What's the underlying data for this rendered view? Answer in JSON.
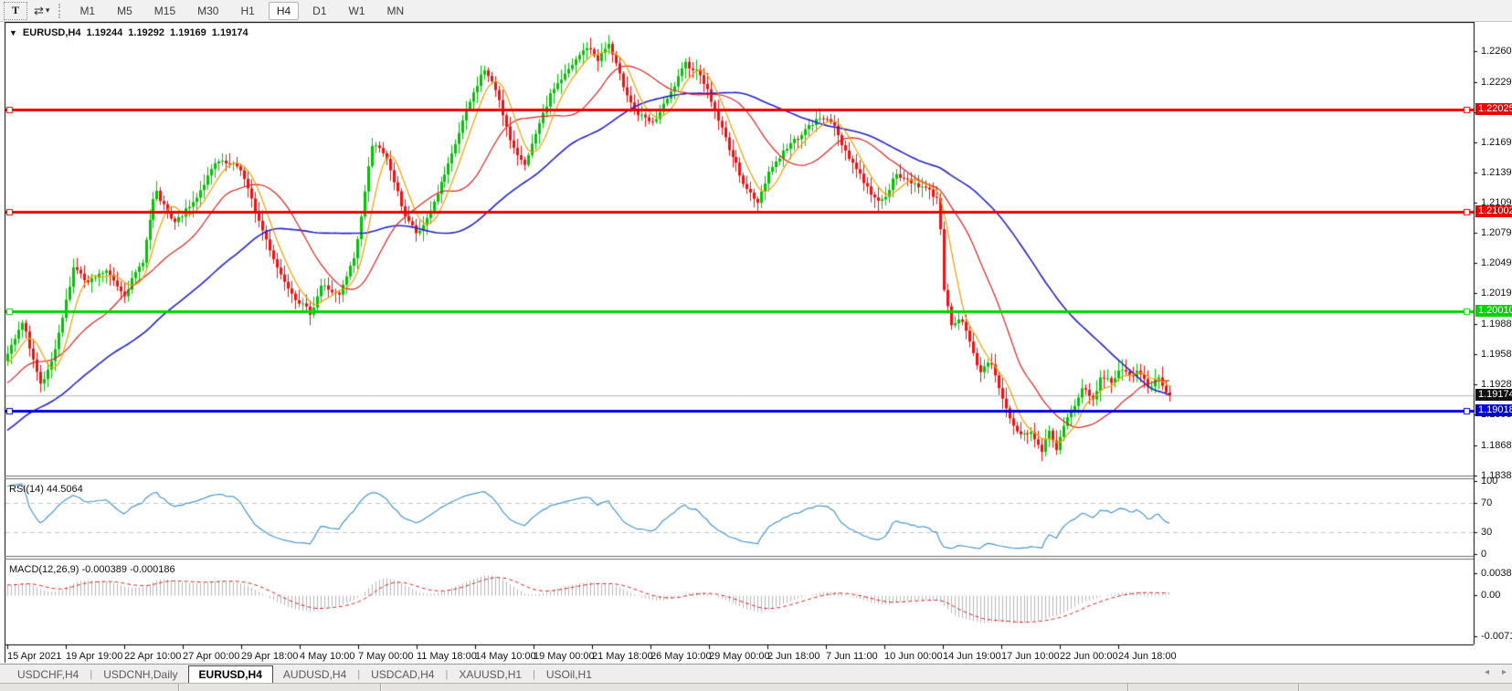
{
  "toolbar": {
    "text_tool_label": "T",
    "tools_dropdown_icon": "⇄",
    "dropdown_caret": "▾",
    "timeframes": [
      "M1",
      "M5",
      "M15",
      "M30",
      "H1",
      "H4",
      "D1",
      "W1",
      "MN"
    ],
    "active_timeframe": "H4"
  },
  "chart": {
    "dropdown_icon": "▼",
    "title": "EURUSD,H4",
    "ohlc": {
      "open": "1.19244",
      "high": "1.19292",
      "low": "1.19169",
      "close": "1.19174"
    }
  },
  "chart_data": {
    "type": "candlestick",
    "symbol": "EURUSD",
    "timeframe": "H4",
    "up_color": "#00c400",
    "down_color": "#ee1111",
    "bars": 320,
    "close_path": [
      [
        0.0,
        1.1958
      ],
      [
        0.013,
        1.199
      ],
      [
        0.029,
        1.1924
      ],
      [
        0.041,
        1.1962
      ],
      [
        0.057,
        1.2048
      ],
      [
        0.068,
        1.2028
      ],
      [
        0.084,
        1.2042
      ],
      [
        0.1,
        1.2018
      ],
      [
        0.116,
        1.2052
      ],
      [
        0.127,
        1.2122
      ],
      [
        0.143,
        1.2088
      ],
      [
        0.159,
        1.2108
      ],
      [
        0.18,
        1.215
      ],
      [
        0.2,
        1.2145
      ],
      [
        0.216,
        1.2092
      ],
      [
        0.233,
        1.2042
      ],
      [
        0.248,
        1.2014
      ],
      [
        0.261,
        1.1999
      ],
      [
        0.27,
        1.2028
      ],
      [
        0.285,
        1.2016
      ],
      [
        0.299,
        1.2058
      ],
      [
        0.314,
        1.2172
      ],
      [
        0.327,
        1.215
      ],
      [
        0.341,
        1.2098
      ],
      [
        0.353,
        1.2076
      ],
      [
        0.366,
        1.2108
      ],
      [
        0.38,
        1.2148
      ],
      [
        0.394,
        1.2198
      ],
      [
        0.41,
        1.2243
      ],
      [
        0.422,
        1.2218
      ],
      [
        0.434,
        1.2164
      ],
      [
        0.446,
        1.2148
      ],
      [
        0.458,
        1.2188
      ],
      [
        0.469,
        1.2222
      ],
      [
        0.484,
        1.2243
      ],
      [
        0.498,
        1.2265
      ],
      [
        0.508,
        1.2252
      ],
      [
        0.517,
        1.2268
      ],
      [
        0.529,
        1.2228
      ],
      [
        0.541,
        1.2198
      ],
      [
        0.555,
        1.2188
      ],
      [
        0.569,
        1.2215
      ],
      [
        0.583,
        1.2248
      ],
      [
        0.596,
        1.2238
      ],
      [
        0.607,
        1.2205
      ],
      [
        0.622,
        1.216
      ],
      [
        0.634,
        1.2128
      ],
      [
        0.645,
        1.2108
      ],
      [
        0.655,
        1.214
      ],
      [
        0.669,
        1.2162
      ],
      [
        0.683,
        1.2178
      ],
      [
        0.697,
        1.2192
      ],
      [
        0.707,
        1.2195
      ],
      [
        0.719,
        1.2165
      ],
      [
        0.731,
        1.2142
      ],
      [
        0.742,
        1.212
      ],
      [
        0.752,
        1.211
      ],
      [
        0.764,
        1.2136
      ],
      [
        0.778,
        1.213
      ],
      [
        0.792,
        1.2122
      ],
      [
        0.801,
        1.2112
      ],
      [
        0.806,
        1.2018
      ],
      [
        0.812,
        1.1988
      ],
      [
        0.82,
        1.1996
      ],
      [
        0.828,
        1.1968
      ],
      [
        0.836,
        1.1938
      ],
      [
        0.845,
        1.1952
      ],
      [
        0.852,
        1.1928
      ],
      [
        0.86,
        1.19
      ],
      [
        0.87,
        1.1878
      ],
      [
        0.882,
        1.188
      ],
      [
        0.89,
        1.186
      ],
      [
        0.896,
        1.1885
      ],
      [
        0.902,
        1.1862
      ],
      [
        0.91,
        1.189
      ],
      [
        0.918,
        1.1908
      ],
      [
        0.926,
        1.1925
      ],
      [
        0.934,
        1.1912
      ],
      [
        0.942,
        1.1938
      ],
      [
        0.95,
        1.193
      ],
      [
        0.958,
        1.1946
      ],
      [
        0.966,
        1.1934
      ],
      [
        0.974,
        1.1942
      ],
      [
        0.982,
        1.1926
      ],
      [
        0.99,
        1.1935
      ],
      [
        1.0,
        1.19174
      ]
    ],
    "price_axis": {
      "min": 1.18385,
      "max": 1.22885,
      "ticks": [
        "1.22600",
        "1.22295",
        "1.21995",
        "1.21695",
        "1.21395",
        "1.21090",
        "1.20790",
        "1.20490",
        "1.20190",
        "1.19885",
        "1.19585",
        "1.19285",
        "1.18985",
        "1.18680",
        "1.18380"
      ]
    },
    "time_labels": [
      "15 Apr 2021",
      "19 Apr 19:00",
      "22 Apr 10:00",
      "27 Apr 00:00",
      "29 Apr 18:00",
      "4 May 10:00",
      "7 May 00:00",
      "11 May 18:00",
      "14 May 10:00",
      "19 May 00:00",
      "21 May 18:00",
      "26 May 10:00",
      "29 May 00:00",
      "2 Jun 18:00",
      "7 Jun 11:00",
      "10 Jun 00:00",
      "14 Jun 19:00",
      "17 Jun 10:00",
      "22 Jun 00:00",
      "24 Jun 18:00"
    ],
    "hlines": [
      {
        "price": 1.22025,
        "label": "1.22025",
        "color": "#ee0000"
      },
      {
        "price": 1.21002,
        "label": "1.21002",
        "color": "#ee0000"
      },
      {
        "price": 1.2001,
        "label": "1.20010",
        "color": "#00d400"
      },
      {
        "price": 1.19018,
        "label": "1.19018",
        "color": "#0000dd"
      }
    ],
    "current_price": {
      "value": 1.19174,
      "label": "1.19174",
      "line_color": "#b4b4b4",
      "tag_color": "#111111"
    },
    "ma_lines": [
      {
        "name": "ma-fast",
        "period": 7,
        "color": "#f0a000"
      },
      {
        "name": "ma-medium",
        "period": 22,
        "color": "#dd2222"
      },
      {
        "name": "ma-slow",
        "period": 58,
        "color": "#2323cc"
      }
    ],
    "indicators": [
      {
        "name": "RSI",
        "label": "RSI(14) 44.5064",
        "period": 14,
        "value": 44.5064,
        "color": "#4a96d2",
        "levels": [
          70,
          30
        ],
        "ticks": [
          "100",
          "70",
          "30",
          "0"
        ],
        "scale": [
          0,
          100
        ]
      },
      {
        "name": "MACD",
        "label": "MACD(12,26,9) -0.000389 -0.000186",
        "params": [
          12,
          26,
          9
        ],
        "values": [
          -0.000389,
          -0.000186
        ],
        "histogram_color": "#b8b8b8",
        "signal_color": "#dd2222",
        "ticks": [
          "0.003873",
          "0.00",
          "-0.007195"
        ],
        "tick_values": [
          0.003873,
          0.0,
          -0.007195
        ]
      }
    ]
  },
  "tabs": {
    "items": [
      {
        "label": "USDCHF,H4",
        "active": false
      },
      {
        "label": "USDCNH,Daily",
        "active": false
      },
      {
        "label": "EURUSD,H4",
        "active": true
      },
      {
        "label": "AUDUSD,H4",
        "active": false
      },
      {
        "label": "USDCAD,H4",
        "active": false
      },
      {
        "label": "XAUUSD,H1",
        "active": false
      },
      {
        "label": "USOil,H1",
        "active": false
      }
    ],
    "scroll_left_icon": "◂",
    "scroll_right_icon": "▸"
  }
}
